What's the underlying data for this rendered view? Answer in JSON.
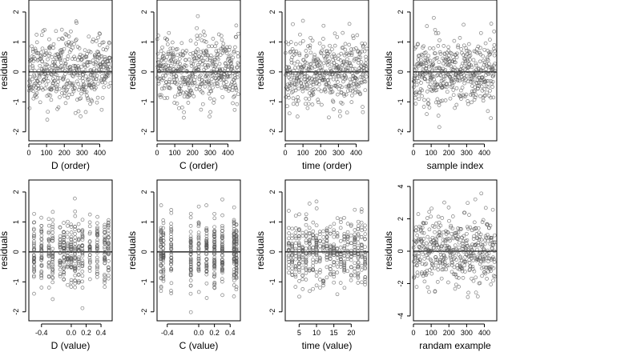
{
  "chart_data": [
    {
      "type": "scatter",
      "id": "d_order",
      "xlabel": "D (order)",
      "ylabel": "residuals",
      "xlim": [
        0,
        470
      ],
      "ylim": [
        -2.3,
        2.4
      ],
      "xticks": [
        0,
        100,
        200,
        300,
        400
      ],
      "xtick_labels": [
        "0",
        "100",
        "200",
        "300",
        "400"
      ],
      "yticks": [
        -2,
        -1,
        0,
        1,
        2
      ],
      "ytick_labels": [
        "-2",
        "-1",
        "0",
        "1",
        "2"
      ],
      "zero_line": true,
      "n_points": 460,
      "x_kind": "index",
      "spread": 0.55,
      "pattern": "sorted_groups",
      "seed": 11
    },
    {
      "type": "scatter",
      "id": "c_order",
      "xlabel": "C (order)",
      "ylabel": "residuals",
      "xlim": [
        0,
        470
      ],
      "ylim": [
        -2.3,
        2.4
      ],
      "xticks": [
        0,
        100,
        200,
        300,
        400
      ],
      "xtick_labels": [
        "0",
        "100",
        "200",
        "300",
        "400"
      ],
      "yticks": [
        -2,
        -1,
        0,
        1,
        2
      ],
      "ytick_labels": [
        "-2",
        "-1",
        "0",
        "1",
        "2"
      ],
      "zero_line": true,
      "n_points": 460,
      "x_kind": "index",
      "spread": 0.55,
      "pattern": "sorted_groups",
      "seed": 23
    },
    {
      "type": "scatter",
      "id": "time_order",
      "xlabel": "time (order)",
      "ylabel": "residuals",
      "xlim": [
        0,
        470
      ],
      "ylim": [
        -2.3,
        2.4
      ],
      "xticks": [
        0,
        100,
        200,
        300,
        400
      ],
      "xtick_labels": [
        "0",
        "100",
        "200",
        "300",
        "400"
      ],
      "yticks": [
        -2,
        -1,
        0,
        1,
        2
      ],
      "ytick_labels": [
        "-2",
        "-1",
        "0",
        "1",
        "2"
      ],
      "zero_line": true,
      "n_points": 460,
      "x_kind": "index",
      "spread": 0.55,
      "pattern": "uniform",
      "seed": 37
    },
    {
      "type": "scatter",
      "id": "sample_index",
      "xlabel": "sample index",
      "ylabel": "residuals",
      "xlim": [
        0,
        470
      ],
      "ylim": [
        -2.3,
        2.4
      ],
      "xticks": [
        0,
        100,
        200,
        300,
        400
      ],
      "xtick_labels": [
        "0",
        "100",
        "200",
        "300",
        "400"
      ],
      "yticks": [
        -2,
        -1,
        0,
        1,
        2
      ],
      "ytick_labels": [
        "-2",
        "-1",
        "0",
        "1",
        "2"
      ],
      "zero_line": true,
      "n_points": 460,
      "x_kind": "index",
      "spread": 0.55,
      "pattern": "uniform",
      "seed": 41
    },
    {
      "type": "scatter",
      "id": "d_value",
      "xlabel": "D (value)",
      "ylabel": "residuals",
      "xlim": [
        -0.57,
        0.55
      ],
      "ylim": [
        -2.3,
        2.4
      ],
      "xticks": [
        -0.4,
        0.0,
        0.2,
        0.4
      ],
      "xtick_labels": [
        "-0.4",
        "0.0",
        "0.2",
        "0.4"
      ],
      "yticks": [
        -2,
        -1,
        0,
        1,
        2
      ],
      "ytick_labels": [
        "-2",
        "-1",
        "0",
        "1",
        "2"
      ],
      "zero_line": true,
      "n_points": 460,
      "x_kind": "values",
      "x_values": [
        -0.5,
        -0.4,
        -0.3,
        -0.25,
        -0.15,
        -0.1,
        -0.05,
        0.0,
        0.05,
        0.1,
        0.15,
        0.25,
        0.35,
        0.45,
        0.5
      ],
      "spread": 0.55,
      "pattern": "columns",
      "seed": 53
    },
    {
      "type": "scatter",
      "id": "c_value",
      "xlabel": "C (value)",
      "ylabel": "residuals",
      "xlim": [
        -0.53,
        0.53
      ],
      "ylim": [
        -2.3,
        2.4
      ],
      "xticks": [
        -0.4,
        0.0,
        0.2,
        0.4
      ],
      "xtick_labels": [
        "-0.4",
        "0.0",
        "0.2",
        "0.4"
      ],
      "yticks": [
        -2,
        -1,
        0,
        1,
        2
      ],
      "ytick_labels": [
        "-2",
        "-1",
        "0",
        "1",
        "2"
      ],
      "zero_line": true,
      "n_points": 460,
      "x_kind": "values",
      "x_values": [
        -0.48,
        -0.45,
        -0.35,
        -0.1,
        0.0,
        0.1,
        0.2,
        0.3,
        0.45,
        0.48
      ],
      "spread": 0.55,
      "pattern": "columns",
      "seed": 67
    },
    {
      "type": "scatter",
      "id": "time_value",
      "xlabel": "time (value)",
      "ylabel": "residuals",
      "xlim": [
        1,
        25
      ],
      "ylim": [
        -2.3,
        2.4
      ],
      "xticks": [
        5,
        10,
        15,
        20
      ],
      "xtick_labels": [
        "5",
        "10",
        "15",
        "20"
      ],
      "yticks": [
        -2,
        -1,
        0,
        1,
        2
      ],
      "ytick_labels": [
        "-2",
        "-1",
        "0",
        "1",
        "2"
      ],
      "zero_line": true,
      "n_points": 460,
      "x_kind": "values",
      "x_values": [
        2,
        3,
        4,
        5,
        6,
        7,
        8,
        9,
        10,
        11,
        12,
        13,
        14,
        15,
        16,
        17,
        18,
        19,
        20,
        21,
        22,
        23,
        24
      ],
      "spread": 0.55,
      "pattern": "columns",
      "seed": 79
    },
    {
      "type": "scatter",
      "id": "random_example",
      "xlabel": "randam example",
      "ylabel": "residuals",
      "xlim": [
        0,
        470
      ],
      "ylim": [
        -4.3,
        4.4
      ],
      "xticks": [
        0,
        100,
        200,
        300,
        400
      ],
      "xtick_labels": [
        "0",
        "100",
        "200",
        "300",
        "400"
      ],
      "yticks": [
        -4,
        -2,
        0,
        2,
        4
      ],
      "ytick_labels": [
        "-4",
        "-2",
        "0",
        "2",
        "4"
      ],
      "zero_line": true,
      "n_points": 460,
      "x_kind": "index",
      "spread": 1.1,
      "pattern": "uniform",
      "seed": 97
    }
  ]
}
